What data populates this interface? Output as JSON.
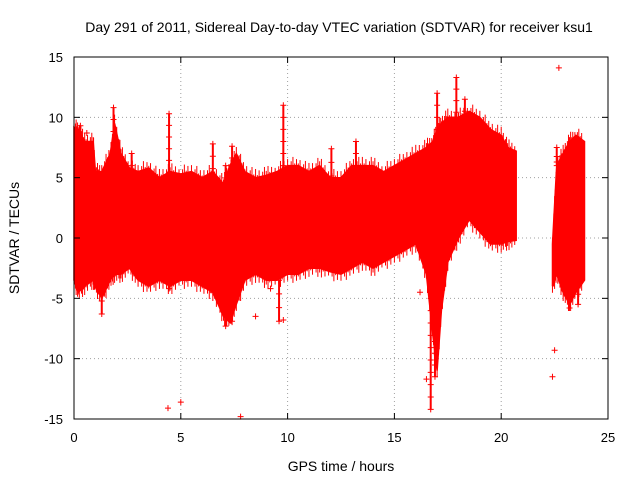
{
  "chart_data": {
    "type": "scatter",
    "title": "Day 291 of 2011, Sidereal Day-to-day VTEC variation (SDTVAR) for receiver ksu1",
    "xlabel": "GPS time / hours",
    "ylabel": "SDTVAR / TECUs",
    "xlim": [
      0,
      25
    ],
    "ylim": [
      -15,
      15
    ],
    "x_ticks": [
      "0",
      "5",
      "10",
      "15",
      "20",
      "25"
    ],
    "y_ticks": [
      "15",
      "10",
      "5",
      "0",
      "-5",
      "-10",
      "-15"
    ],
    "grid": true,
    "marker": "+",
    "series_color": "#ff0000",
    "envelope": {
      "x": [
        0.0,
        0.2,
        0.5,
        0.9,
        1.0,
        1.3,
        1.7,
        1.9,
        2.2,
        2.6,
        3.0,
        3.5,
        4.0,
        4.5,
        5.0,
        5.5,
        6.0,
        6.5,
        7.0,
        7.3,
        7.6,
        8.0,
        8.5,
        9.0,
        9.5,
        10.0,
        10.5,
        11.0,
        11.5,
        12.0,
        12.5,
        13.0,
        13.5,
        14.0,
        14.5,
        15.0,
        15.5,
        16.0,
        16.5,
        16.8,
        17.0,
        17.2,
        17.5,
        18.0,
        18.5,
        19.0,
        19.5,
        20.0,
        20.3,
        20.7
      ],
      "upper": [
        9.2,
        9.0,
        8.0,
        8.0,
        5.5,
        5.5,
        7.0,
        9.5,
        7.0,
        5.8,
        5.5,
        5.8,
        5.0,
        5.5,
        5.3,
        5.5,
        5.0,
        5.5,
        4.5,
        6.0,
        7.0,
        5.5,
        5.0,
        5.2,
        5.5,
        6.0,
        6.0,
        5.5,
        6.0,
        5.0,
        5.0,
        6.0,
        6.0,
        6.0,
        5.5,
        6.0,
        6.5,
        7.0,
        7.5,
        8.0,
        9.0,
        9.5,
        10.0,
        10.0,
        10.5,
        10.0,
        9.0,
        8.5,
        7.5,
        7.2
      ],
      "lower": [
        -3.5,
        -4.5,
        -4.0,
        -3.5,
        -4.0,
        -5.0,
        -3.5,
        -3.0,
        -3.0,
        -2.5,
        -3.5,
        -4.0,
        -3.5,
        -4.0,
        -3.5,
        -3.5,
        -4.0,
        -4.5,
        -6.5,
        -7.0,
        -5.5,
        -3.5,
        -3.0,
        -3.5,
        -3.5,
        -3.0,
        -3.0,
        -2.5,
        -2.5,
        -2.8,
        -3.0,
        -2.5,
        -2.0,
        -2.5,
        -2.0,
        -1.5,
        -1.0,
        -0.5,
        -3.0,
        -8.0,
        -11.0,
        -6.0,
        -2.0,
        0.0,
        1.5,
        0.5,
        -0.5,
        -0.5,
        -0.3,
        -0.2
      ]
    },
    "envelope2": {
      "x": [
        22.4,
        22.6,
        22.9,
        23.2,
        23.5,
        23.9
      ],
      "upper": [
        -0.5,
        6.0,
        7.0,
        8.0,
        8.5,
        8.0
      ],
      "lower": [
        -4.0,
        -3.0,
        -4.5,
        -5.5,
        -4.5,
        -3.5
      ]
    },
    "spikes": [
      {
        "x": 1.85,
        "y0": -2.0,
        "y1": 10.8
      },
      {
        "x": 0.3,
        "y0": -4.0,
        "y1": 9.3
      },
      {
        "x": 1.3,
        "y0": -6.3,
        "y1": -2.0
      },
      {
        "x": 2.7,
        "y0": -1.0,
        "y1": 7.0
      },
      {
        "x": 4.45,
        "y0": -4.2,
        "y1": 10.3
      },
      {
        "x": 6.5,
        "y0": -4.5,
        "y1": 7.8
      },
      {
        "x": 7.1,
        "y0": -7.3,
        "y1": 6.0
      },
      {
        "x": 7.4,
        "y0": -6.9,
        "y1": 7.6
      },
      {
        "x": 9.8,
        "y0": -3.0,
        "y1": 11.0
      },
      {
        "x": 9.6,
        "y0": -6.9,
        "y1": -3.5
      },
      {
        "x": 12.05,
        "y0": 4.0,
        "y1": 7.4
      },
      {
        "x": 13.2,
        "y0": 4.0,
        "y1": 8.0
      },
      {
        "x": 16.7,
        "y0": -14.2,
        "y1": -5.0
      },
      {
        "x": 16.9,
        "y0": -11.5,
        "y1": 8.0
      },
      {
        "x": 17.0,
        "y0": 8.0,
        "y1": 12.0
      },
      {
        "x": 17.9,
        "y0": 8.5,
        "y1": 13.3
      },
      {
        "x": 18.3,
        "y0": 9.5,
        "y1": 11.5
      },
      {
        "x": 22.6,
        "y0": 6.0,
        "y1": 7.5
      },
      {
        "x": 23.2,
        "y0": -5.8,
        "y1": -3.5
      },
      {
        "x": 23.6,
        "y0": -5.5,
        "y1": -3.0
      }
    ],
    "outliers": [
      {
        "x": 4.4,
        "y": -14.1
      },
      {
        "x": 5.0,
        "y": -13.6
      },
      {
        "x": 7.8,
        "y": -14.8
      },
      {
        "x": 8.5,
        "y": -6.5
      },
      {
        "x": 9.8,
        "y": -6.8
      },
      {
        "x": 9.2,
        "y": -4.2
      },
      {
        "x": 22.4,
        "y": -11.5
      },
      {
        "x": 22.5,
        "y": -9.3
      },
      {
        "x": 22.7,
        "y": 14.1
      },
      {
        "x": 0.6,
        "y": 8.7
      },
      {
        "x": 16.5,
        "y": -11.7
      },
      {
        "x": 22.6,
        "y": 6.3
      },
      {
        "x": 16.2,
        "y": -4.5
      }
    ]
  }
}
